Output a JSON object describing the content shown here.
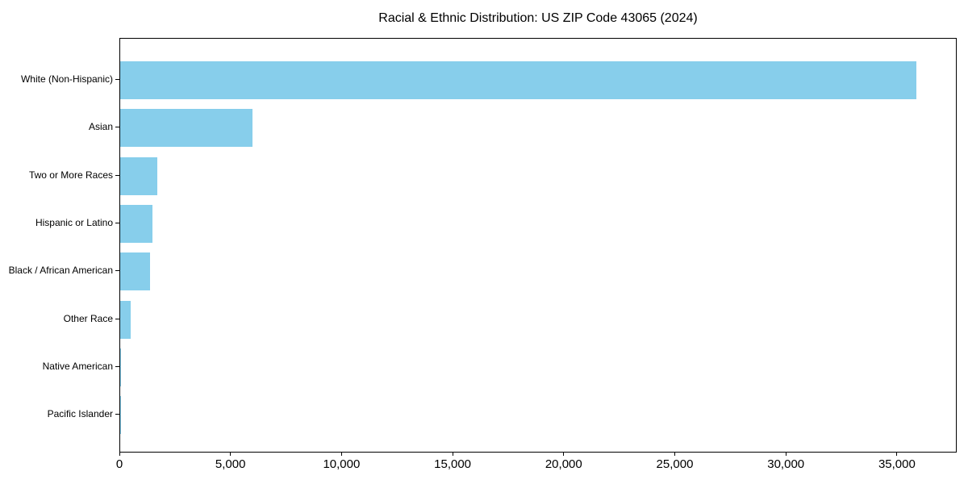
{
  "chart_data": {
    "type": "bar",
    "orientation": "horizontal",
    "title": "Racial & Ethnic Distribution: US ZIP Code 43065 (2024)",
    "categories": [
      "White (Non-Hispanic)",
      "Asian",
      "Two or More Races",
      "Hispanic or Latino",
      "Black / African American",
      "Other Race",
      "Native American",
      "Pacific Islander"
    ],
    "values": [
      35900,
      5950,
      1670,
      1450,
      1340,
      460,
      20,
      10
    ],
    "xlabel": "",
    "ylabel": "",
    "xlim": [
      0,
      37690
    ],
    "x_ticks": [
      0,
      5000,
      10000,
      15000,
      20000,
      25000,
      30000,
      35000
    ],
    "x_tick_labels": [
      "0",
      "5,000",
      "10,000",
      "15,000",
      "20,000",
      "25,000",
      "30,000",
      "35,000"
    ],
    "bar_color": "#87CEEB",
    "axis_color": "#000000",
    "text_color": "#000000",
    "background_color": "#ffffff",
    "grid": false,
    "legend": "none"
  }
}
